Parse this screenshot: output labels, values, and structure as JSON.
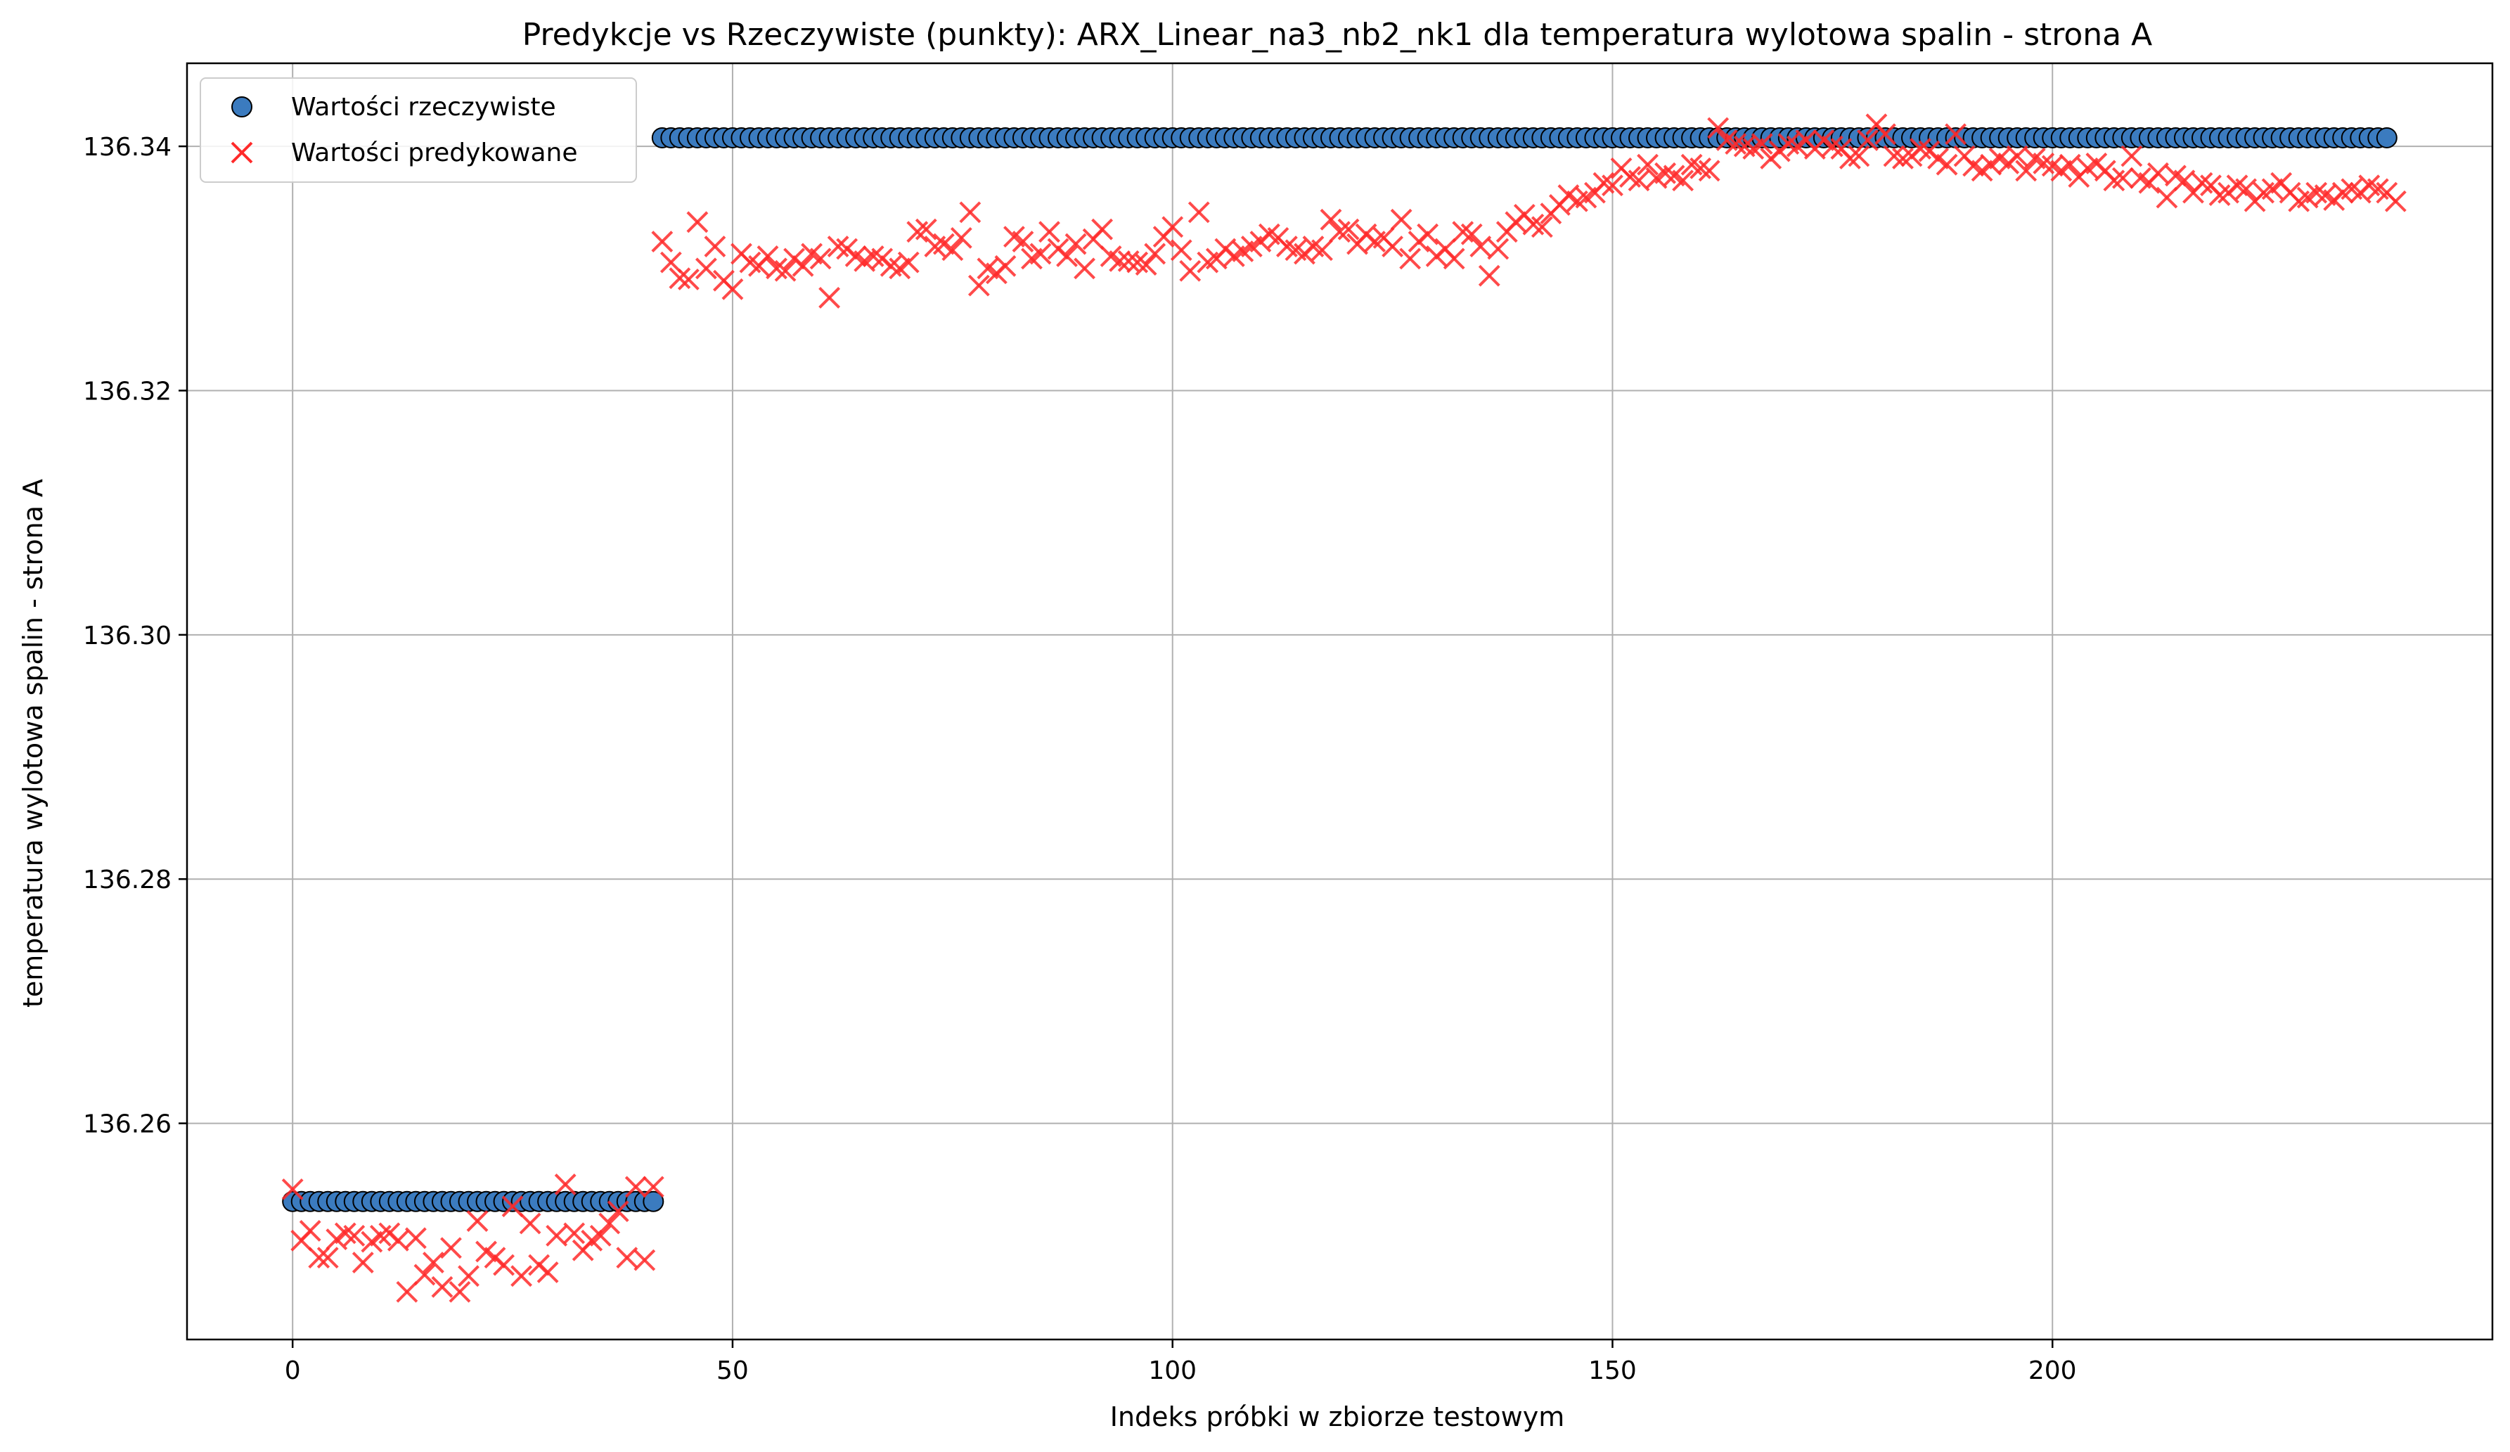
{
  "chart_data": {
    "type": "scatter",
    "title": "Predykcje vs Rzeczywiste (punkty): ARX_Linear_na3_nb2_nk1 dla temperatura wylotowa spalin - strona A",
    "xlabel": "Indeks próbki w zbiorze testowym",
    "ylabel": "temperatura wylotowa spalin - strona A",
    "xlim": [
      -12,
      250
    ],
    "ylim": [
      136.2423,
      136.3468
    ],
    "xticks": [
      0,
      50,
      100,
      150,
      200
    ],
    "xtick_labels": [
      "0",
      "50",
      "100",
      "150",
      "200"
    ],
    "yticks": [
      136.26,
      136.28,
      136.3,
      136.32,
      136.34
    ],
    "ytick_labels": [
      "136.26",
      "136.28",
      "136.30",
      "136.32",
      "136.34"
    ],
    "grid": true,
    "legend_position": "top-left",
    "series": [
      {
        "name": "Wartości rzeczywiste",
        "marker": "circle",
        "color": "#3b7bbf",
        "edge_color": "#000000",
        "segments": [
          {
            "x_start": 0,
            "x_end": 41,
            "y": 136.2536
          },
          {
            "x_start": 42,
            "x_end": 238,
            "y": 136.3407
          }
        ]
      },
      {
        "name": "Wartości predykowane",
        "marker": "x",
        "color": "#ff2a2a",
        "x_start": 0,
        "values": [
          136.2546,
          136.2504,
          136.2512,
          136.249,
          136.249,
          136.2505,
          136.251,
          136.2508,
          136.2486,
          136.2503,
          136.2508,
          136.251,
          136.2504,
          136.2462,
          136.2506,
          136.2476,
          136.2486,
          136.2466,
          136.2498,
          136.2462,
          136.2475,
          136.252,
          136.2495,
          136.249,
          136.2484,
          136.2532,
          136.2475,
          136.2518,
          136.2484,
          136.2478,
          136.2508,
          136.255,
          136.251,
          136.2496,
          136.2504,
          136.2508,
          136.2518,
          136.2528,
          136.249,
          136.2548,
          136.2488,
          136.2548,
          136.3322,
          136.3305,
          136.3292,
          136.3291,
          136.3338,
          136.33,
          136.3318,
          136.329,
          136.3283,
          136.3312,
          136.3305,
          136.3302,
          136.331,
          136.33,
          136.3298,
          136.3308,
          136.3302,
          136.3312,
          136.3308,
          136.3276,
          136.3318,
          136.3316,
          136.331,
          136.3306,
          136.331,
          136.3308,
          136.3302,
          136.33,
          136.3305,
          136.333,
          136.3332,
          136.3318,
          136.332,
          136.3315,
          136.3325,
          136.3346,
          136.3286,
          136.33,
          136.3296,
          136.3302,
          136.3326,
          136.3322,
          136.3308,
          136.3312,
          136.333,
          136.3316,
          136.331,
          136.332,
          136.33,
          136.3324,
          136.3332,
          136.331,
          136.3306,
          136.3306,
          136.3305,
          136.3303,
          136.3312,
          136.3326,
          136.3334,
          136.3315,
          136.3298,
          136.3346,
          136.3305,
          136.3308,
          136.3316,
          136.331,
          136.3314,
          136.3318,
          136.3322,
          136.3328,
          136.3325,
          136.3318,
          136.3315,
          136.3312,
          136.3318,
          136.3315,
          136.334,
          136.333,
          136.3332,
          136.332,
          136.3328,
          136.3322,
          136.3325,
          136.3318,
          136.334,
          136.3308,
          136.3322,
          136.3328,
          136.331,
          136.3316,
          136.3308,
          136.333,
          136.3328,
          136.3318,
          136.3294,
          136.3316,
          136.333,
          136.3338,
          136.3344,
          136.3336,
          136.3334,
          136.3345,
          136.3352,
          136.336,
          136.3355,
          136.3358,
          136.3362,
          136.337,
          136.3368,
          136.3382,
          136.3375,
          136.3372,
          136.3385,
          136.3374,
          136.3378,
          136.3376,
          136.3372,
          136.3385,
          136.3382,
          136.338,
          136.3415,
          136.3405,
          136.3402,
          136.34,
          136.3398,
          136.3402,
          136.339,
          136.3396,
          136.3402,
          136.34,
          136.3405,
          136.3398,
          136.3405,
          136.34,
          136.3398,
          136.339,
          136.3392,
          136.3405,
          136.3418,
          136.341,
          136.3392,
          136.339,
          136.3392,
          136.3398,
          136.3396,
          136.339,
          136.3385,
          136.341,
          136.3392,
          136.3384,
          136.338,
          136.3385,
          136.339,
          136.3386,
          136.3392,
          136.338,
          136.339,
          136.3386,
          136.3384,
          136.338,
          136.3385,
          136.3375,
          136.3382,
          136.3386,
          136.338,
          136.3372,
          136.3374,
          136.3392,
          136.3374,
          136.337,
          136.3378,
          136.3358,
          136.3376,
          136.3372,
          136.3362,
          136.337,
          136.3368,
          136.336,
          136.3362,
          136.3368,
          136.3365,
          136.3355,
          136.3362,
          136.3365,
          136.337,
          136.3362,
          136.3355,
          136.3358,
          136.3362,
          136.336,
          136.3356,
          136.3362,
          136.3365,
          136.3362,
          136.3368,
          136.3365,
          136.3362,
          136.3355
        ]
      }
    ]
  }
}
